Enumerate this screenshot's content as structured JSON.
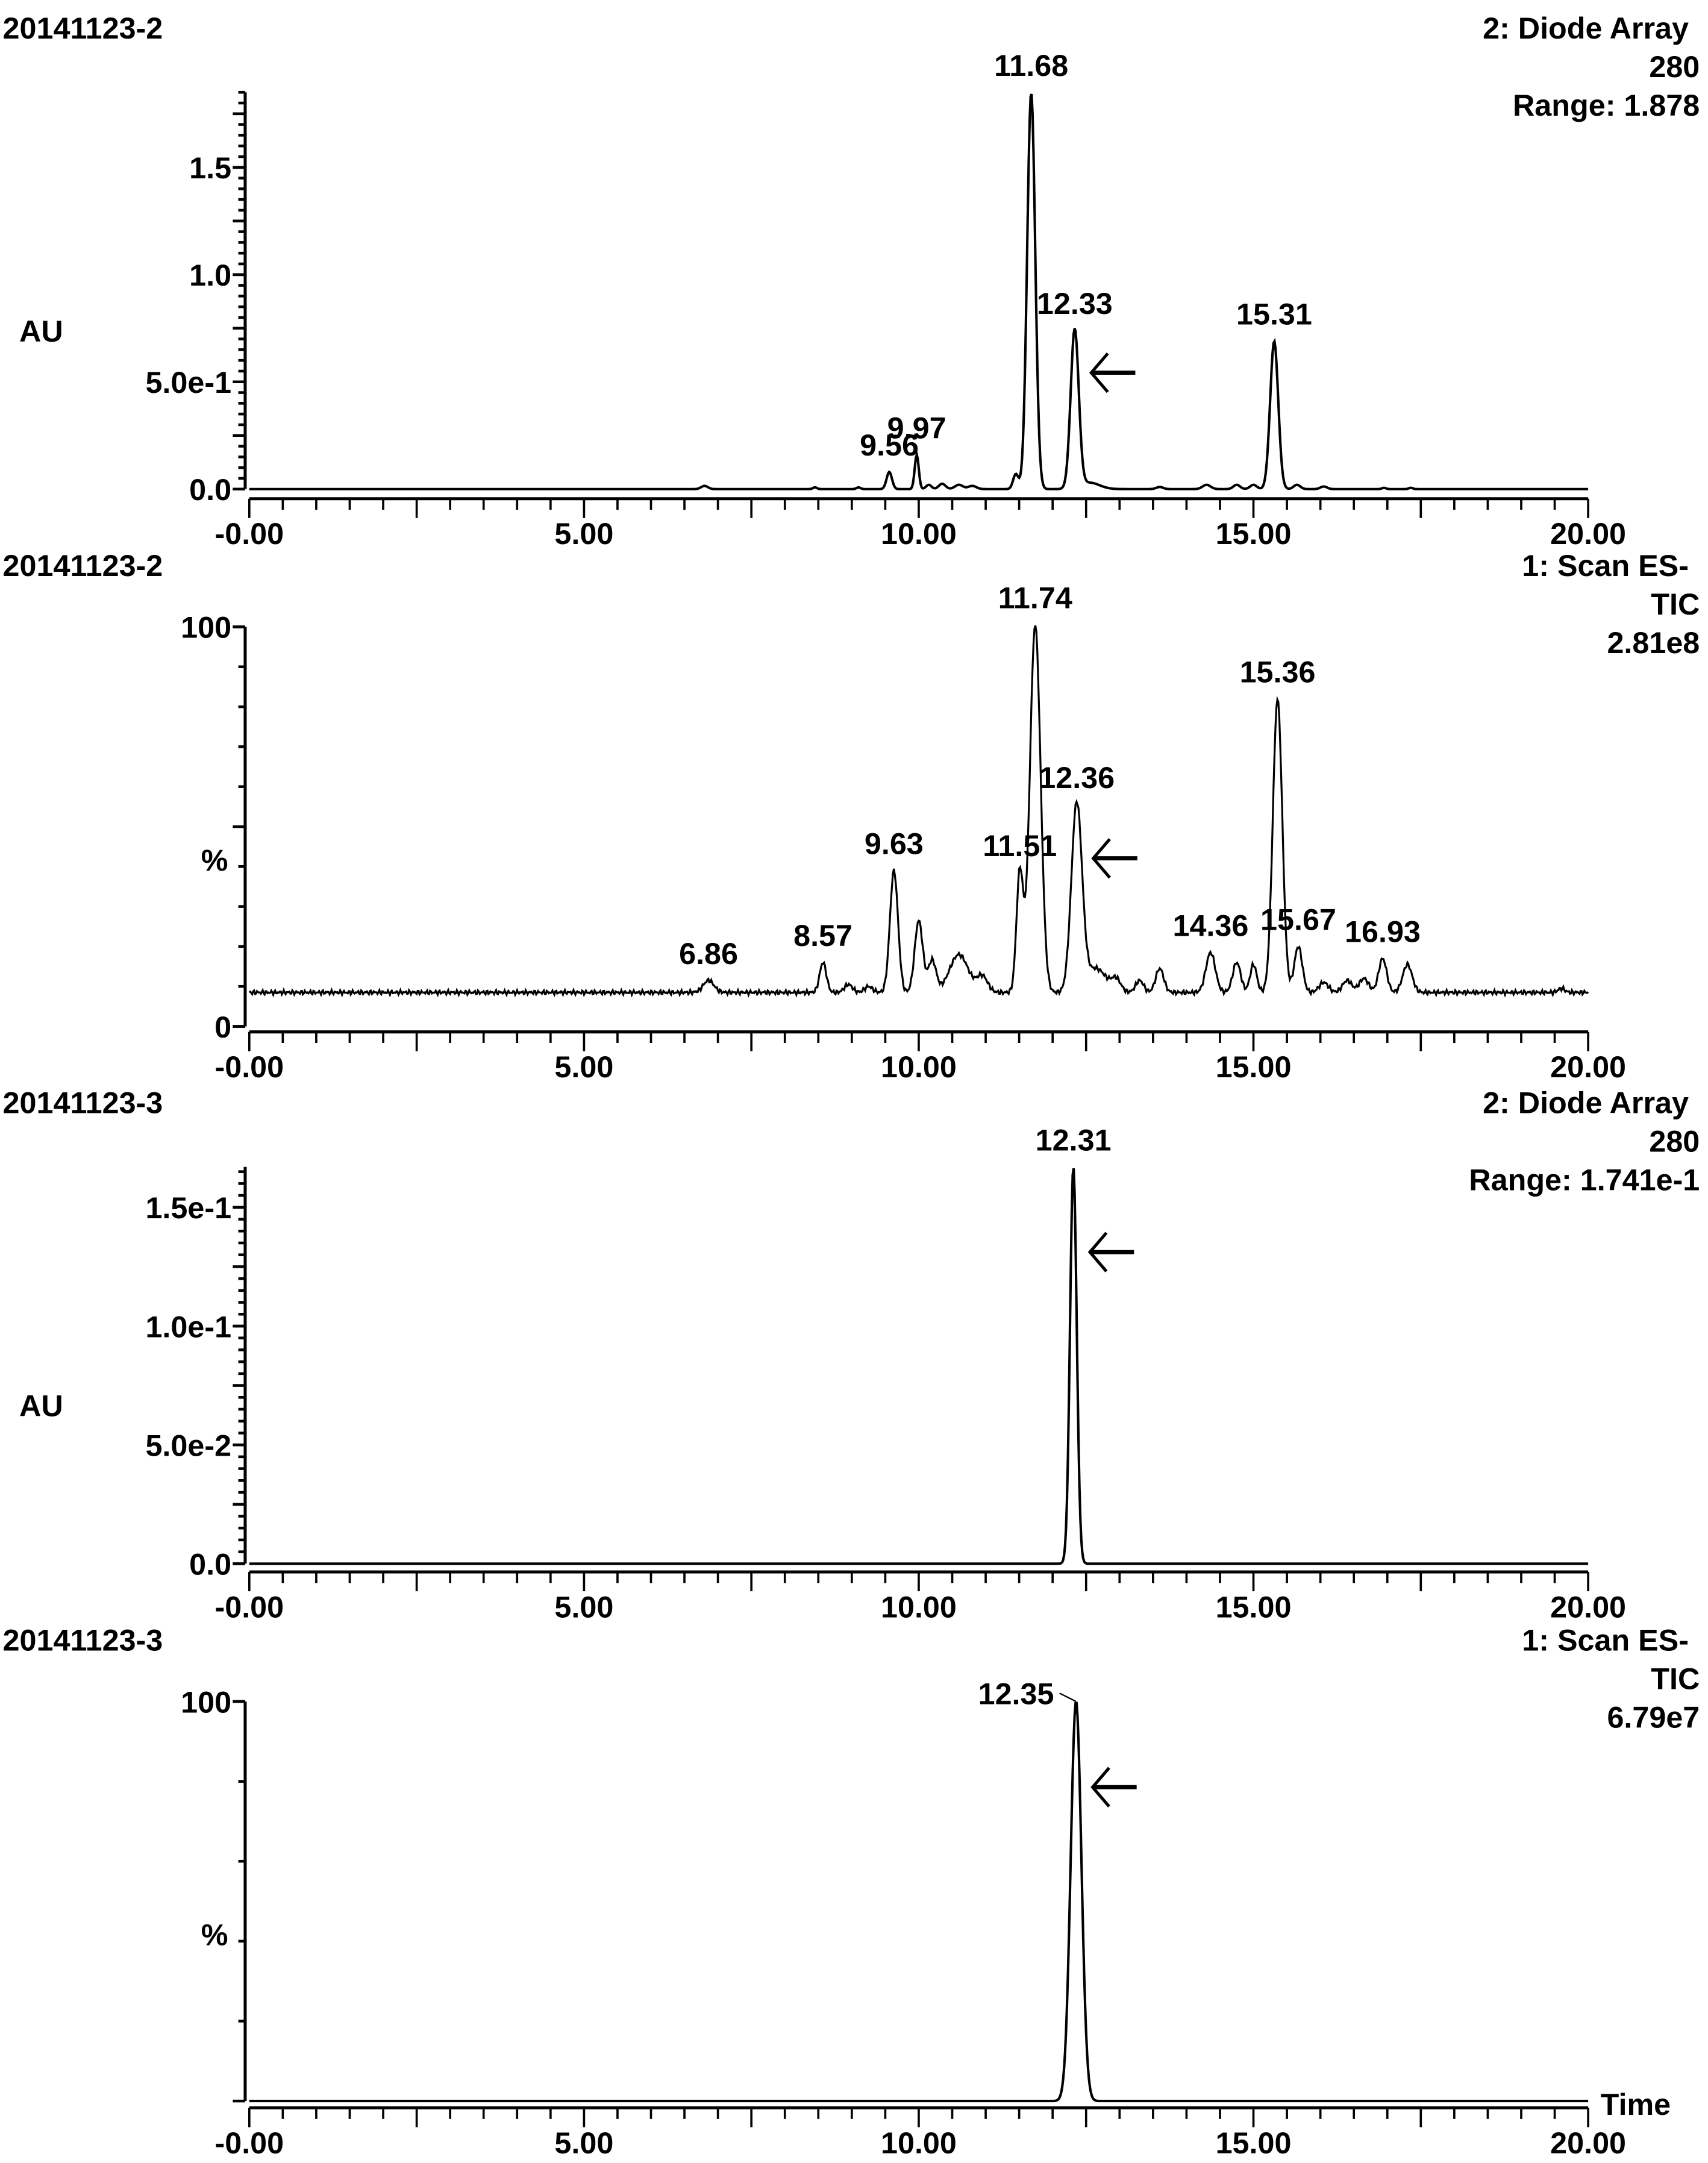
{
  "figure": {
    "panels_count": 4,
    "x_axis_label": "Time",
    "arrow_glyph": "left-arrow"
  },
  "chart_data": [
    {
      "type": "line",
      "title_left": "20141123-2",
      "header_right": [
        "2: Diode Array",
        "280",
        "Range: 1.878"
      ],
      "ylabel": "AU",
      "xlabel": "",
      "xlim": [
        0,
        20
      ],
      "ylim": [
        0,
        1.85
      ],
      "x_ticks": [
        "-0.00",
        "5.00",
        "10.00",
        "15.00",
        "20.00"
      ],
      "y_ticks": [
        {
          "value": 0.0,
          "label": "0.0"
        },
        {
          "value": 0.5,
          "label": "5.0e-1"
        },
        {
          "value": 1.0,
          "label": "1.0"
        },
        {
          "value": 1.5,
          "label": "1.5"
        }
      ],
      "y_minor_step": 0.05,
      "y_major_step": 0.25,
      "baseline": 0.0,
      "peaks": [
        {
          "x": 6.8,
          "y": 0.015,
          "w": 0.05
        },
        {
          "x": 8.45,
          "y": 0.008,
          "w": 0.03
        },
        {
          "x": 9.1,
          "y": 0.008,
          "w": 0.03
        },
        {
          "x": 9.56,
          "y": 0.08,
          "w": 0.04,
          "label": "9.56"
        },
        {
          "x": 9.97,
          "y": 0.16,
          "w": 0.03,
          "label": "9.97"
        },
        {
          "x": 10.15,
          "y": 0.02,
          "w": 0.04
        },
        {
          "x": 10.35,
          "y": 0.025,
          "w": 0.05
        },
        {
          "x": 10.6,
          "y": 0.02,
          "w": 0.06
        },
        {
          "x": 10.8,
          "y": 0.015,
          "w": 0.06
        },
        {
          "x": 11.45,
          "y": 0.07,
          "w": 0.04
        },
        {
          "x": 11.68,
          "y": 1.85,
          "w": 0.06,
          "label": "11.68"
        },
        {
          "x": 12.33,
          "y": 0.74,
          "w": 0.06,
          "label": "12.33",
          "arrow": true
        },
        {
          "x": 12.55,
          "y": 0.03,
          "w": 0.15
        },
        {
          "x": 13.6,
          "y": 0.01,
          "w": 0.05
        },
        {
          "x": 14.3,
          "y": 0.02,
          "w": 0.06
        },
        {
          "x": 14.75,
          "y": 0.02,
          "w": 0.05
        },
        {
          "x": 15.0,
          "y": 0.02,
          "w": 0.05
        },
        {
          "x": 15.31,
          "y": 0.69,
          "w": 0.06,
          "label": "15.31"
        },
        {
          "x": 15.65,
          "y": 0.02,
          "w": 0.05
        },
        {
          "x": 16.05,
          "y": 0.012,
          "w": 0.05
        },
        {
          "x": 16.95,
          "y": 0.006,
          "w": 0.03
        },
        {
          "x": 17.35,
          "y": 0.006,
          "w": 0.03
        }
      ]
    },
    {
      "type": "line",
      "title_left": "20141123-2",
      "header_right": [
        "1: Scan ES-",
        "TIC",
        "2.81e8"
      ],
      "ylabel": "%",
      "xlabel": "",
      "xlim": [
        0,
        20
      ],
      "ylim": [
        0,
        100
      ],
      "x_ticks": [
        "-0.00",
        "5.00",
        "10.00",
        "15.00",
        "20.00"
      ],
      "y_ticks": [
        {
          "value": 0,
          "label": "0"
        },
        {
          "value": 100,
          "label": "100"
        }
      ],
      "y_minor_step": 10,
      "y_major_step": 50,
      "baseline": 8.5,
      "peaks": [
        {
          "x": 6.86,
          "y": 3.0,
          "w": 0.08,
          "label": "6.86"
        },
        {
          "x": 8.57,
          "y": 7.5,
          "w": 0.05,
          "label": "8.57"
        },
        {
          "x": 8.95,
          "y": 2.0,
          "w": 0.06
        },
        {
          "x": 9.25,
          "y": 1.5,
          "w": 0.06
        },
        {
          "x": 9.63,
          "y": 30.5,
          "w": 0.06,
          "label": "9.63"
        },
        {
          "x": 10.0,
          "y": 18.0,
          "w": 0.06
        },
        {
          "x": 10.2,
          "y": 8.0,
          "w": 0.06
        },
        {
          "x": 10.6,
          "y": 9.5,
          "w": 0.14
        },
        {
          "x": 10.95,
          "y": 4.0,
          "w": 0.08
        },
        {
          "x": 11.51,
          "y": 30.0,
          "w": 0.05,
          "label": "11.51"
        },
        {
          "x": 11.74,
          "y": 92.0,
          "w": 0.08,
          "label": "11.74"
        },
        {
          "x": 12.36,
          "y": 47.0,
          "w": 0.08,
          "label": "12.36",
          "arrow": true
        },
        {
          "x": 12.65,
          "y": 6.0,
          "w": 0.15
        },
        {
          "x": 12.95,
          "y": 3.0,
          "w": 0.07
        },
        {
          "x": 13.3,
          "y": 3.0,
          "w": 0.06
        },
        {
          "x": 13.6,
          "y": 6.0,
          "w": 0.06
        },
        {
          "x": 14.36,
          "y": 10.0,
          "w": 0.07,
          "label": "14.36"
        },
        {
          "x": 14.75,
          "y": 7.5,
          "w": 0.06
        },
        {
          "x": 15.0,
          "y": 7.0,
          "w": 0.05
        },
        {
          "x": 15.36,
          "y": 73.5,
          "w": 0.07,
          "label": "15.36"
        },
        {
          "x": 15.67,
          "y": 11.5,
          "w": 0.06,
          "label": "15.67"
        },
        {
          "x": 16.05,
          "y": 2.5,
          "w": 0.07
        },
        {
          "x": 16.4,
          "y": 3.0,
          "w": 0.07
        },
        {
          "x": 16.65,
          "y": 3.5,
          "w": 0.07
        },
        {
          "x": 16.93,
          "y": 8.5,
          "w": 0.06,
          "label": "16.93"
        },
        {
          "x": 17.3,
          "y": 7.0,
          "w": 0.07
        },
        {
          "x": 19.6,
          "y": 1.0,
          "w": 0.05
        }
      ]
    },
    {
      "type": "line",
      "title_left": "20141123-3",
      "header_right": [
        "2: Diode Array",
        "280",
        "Range: 1.741e-1"
      ],
      "ylabel": "AU",
      "xlabel": "",
      "xlim": [
        0,
        20
      ],
      "ylim": [
        0,
        0.167
      ],
      "x_ticks": [
        "-0.00",
        "5.00",
        "10.00",
        "15.00",
        "20.00"
      ],
      "y_ticks": [
        {
          "value": 0.0,
          "label": "0.0"
        },
        {
          "value": 0.05,
          "label": "5.0e-2"
        },
        {
          "value": 0.1,
          "label": "1.0e-1"
        },
        {
          "value": 0.15,
          "label": "1.5e-1"
        }
      ],
      "y_minor_step": 0.005,
      "y_major_step": 0.025,
      "baseline": 0.0,
      "peaks": [
        {
          "x": 12.31,
          "y": 0.167,
          "w": 0.05,
          "label": "12.31",
          "arrow": true
        }
      ]
    },
    {
      "type": "line",
      "title_left": "20141123-3",
      "header_right": [
        "1: Scan ES-",
        "TIC",
        "6.79e7"
      ],
      "ylabel": "%",
      "xlabel": "Time",
      "xlim": [
        0,
        20
      ],
      "ylim": [
        0,
        100
      ],
      "x_ticks": [
        "-0.00",
        "5.00",
        "10.00",
        "15.00",
        "20.00"
      ],
      "y_ticks": [
        {
          "value": 100,
          "label": "100"
        }
      ],
      "y_minor_step": 20,
      "y_major_step": 100,
      "baseline": 0.0,
      "peaks": [
        {
          "x": 12.35,
          "y": 100,
          "w": 0.08,
          "label": "12.35",
          "label_side": "left",
          "arrow": true
        }
      ]
    }
  ]
}
